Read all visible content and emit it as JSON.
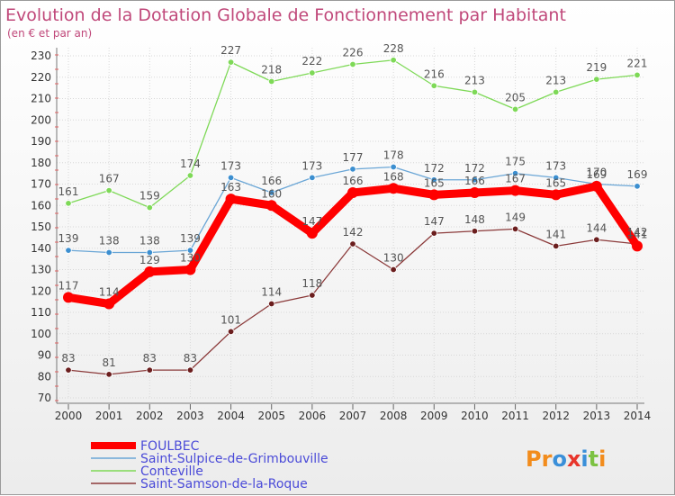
{
  "chart_data": {
    "type": "line",
    "title": "Evolution de la Dotation Globale de Fonctionnement par Habitant",
    "subtitle": "(en € et par an)",
    "x": [
      "2000",
      "2001",
      "2002",
      "2003",
      "2004",
      "2005",
      "2006",
      "2007",
      "2008",
      "2009",
      "2010",
      "2011",
      "2012",
      "2013",
      "2014"
    ],
    "y_ticks": [
      "70",
      "80",
      "90",
      "100",
      "110",
      "120",
      "130",
      "140",
      "150",
      "160",
      "170",
      "180",
      "190",
      "200",
      "210",
      "220",
      "230"
    ],
    "ylim": [
      70,
      230
    ],
    "grid": true,
    "legend_position": "bottom-left",
    "series": [
      {
        "name": "Conteville",
        "color": "#7ed957",
        "dot": "#7ed957",
        "values": [
          161,
          167,
          159,
          174,
          227,
          218,
          222,
          226,
          228,
          216,
          213,
          205,
          213,
          219,
          221
        ],
        "labels": [
          "161",
          "167",
          "159",
          "174",
          "227",
          "218",
          "222",
          "226",
          "228",
          "216",
          "213",
          "205",
          "213",
          "219",
          "221"
        ]
      },
      {
        "name": "Saint-Sulpice-de-Grimbouville",
        "color": "#6aa6d6",
        "dot": "#3c8fd0",
        "values": [
          139,
          138,
          138,
          139,
          173,
          166,
          173,
          177,
          178,
          172,
          172,
          175,
          173,
          170,
          169
        ],
        "labels": [
          "139",
          "138",
          "138",
          "139",
          "173",
          "166",
          "173",
          "177",
          "178",
          "172",
          "172",
          "175",
          "173",
          "170",
          "169"
        ]
      },
      {
        "name": "Saint-Samson-de-la-Roque",
        "color": "#8b3a3a",
        "dot": "#6b1e1e",
        "values": [
          83,
          81,
          83,
          83,
          101,
          114,
          118,
          142,
          130,
          147,
          148,
          149,
          141,
          144,
          142
        ],
        "labels": [
          "83",
          "81",
          "83",
          "83",
          "101",
          "114",
          "118",
          "142",
          "130",
          "147",
          "148",
          "149",
          "141",
          "144",
          "142"
        ]
      },
      {
        "name": "FOULBEC",
        "color": "#ff0000",
        "dot": "#ff0000",
        "values": [
          117,
          114,
          129,
          130,
          163,
          160,
          147,
          166,
          168,
          165,
          166,
          167,
          165,
          169,
          141
        ],
        "labels": [
          "117",
          "114",
          "129",
          "130",
          "163",
          "160",
          "147",
          "166",
          "168",
          "165",
          "166",
          "167",
          "165",
          "169",
          "141"
        ]
      }
    ],
    "legend": [
      {
        "name": "FOULBEC",
        "color": "#ff0000",
        "thick": true
      },
      {
        "name": "Saint-Sulpice-de-Grimbouville",
        "color": "#6aa6d6",
        "thick": false
      },
      {
        "name": "Conteville",
        "color": "#7ed957",
        "thick": false
      },
      {
        "name": "Saint-Samson-de-la-Roque",
        "color": "#8b3a3a",
        "thick": false
      }
    ]
  },
  "logo": {
    "text": "Proxiti"
  }
}
